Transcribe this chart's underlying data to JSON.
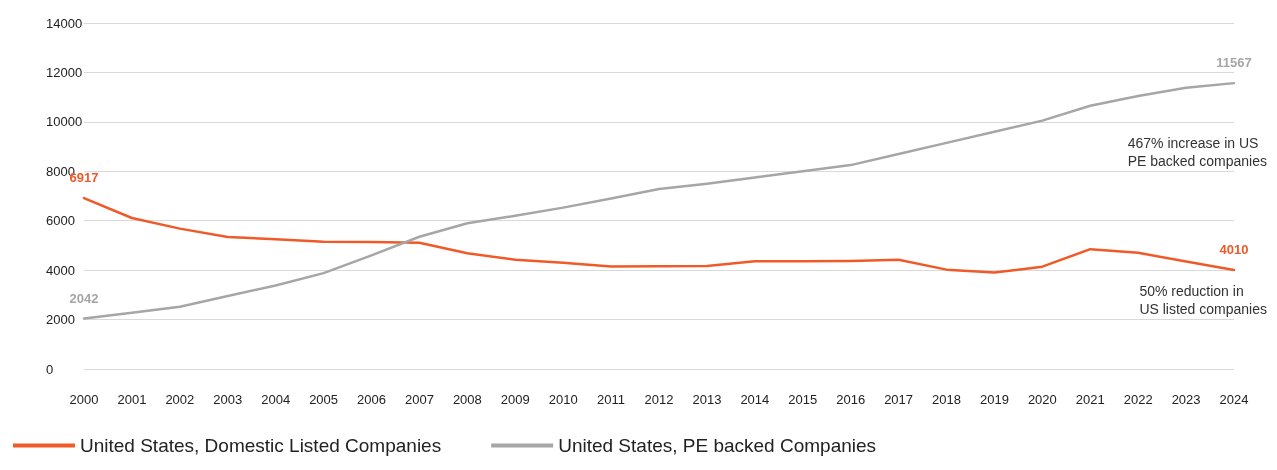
{
  "chart_data": {
    "type": "line",
    "categories": [
      "2000",
      "2001",
      "2002",
      "2003",
      "2004",
      "2005",
      "2006",
      "2007",
      "2008",
      "2009",
      "2010",
      "2011",
      "2012",
      "2013",
      "2014",
      "2015",
      "2016",
      "2017",
      "2018",
      "2019",
      "2020",
      "2021",
      "2022",
      "2023",
      "2024"
    ],
    "series": [
      {
        "name": "United States, Domestic Listed Companies",
        "color": "#f05a28",
        "values": [
          6917,
          6110,
          5680,
          5340,
          5250,
          5150,
          5140,
          5110,
          4680,
          4420,
          4300,
          4150,
          4160,
          4170,
          4360,
          4360,
          4370,
          4420,
          4020,
          3900,
          4140,
          4850,
          4700,
          4350,
          4010
        ],
        "value_labels": [
          "6917",
          null,
          null,
          null,
          null,
          null,
          null,
          null,
          null,
          null,
          null,
          null,
          null,
          null,
          null,
          null,
          null,
          null,
          null,
          null,
          null,
          null,
          null,
          null,
          "4010"
        ]
      },
      {
        "name": "United States, PE backed Companies",
        "color": "#a6a6a6",
        "values": [
          2042,
          2280,
          2520,
          2950,
          3380,
          3880,
          4600,
          5350,
          5900,
          6200,
          6530,
          6900,
          7280,
          7500,
          7750,
          8000,
          8250,
          8700,
          9150,
          9600,
          10050,
          10650,
          11050,
          11380,
          11567
        ],
        "value_labels": [
          "2042",
          null,
          null,
          null,
          null,
          null,
          null,
          null,
          null,
          null,
          null,
          null,
          null,
          null,
          null,
          null,
          null,
          null,
          null,
          null,
          null,
          null,
          null,
          null,
          "11567"
        ]
      }
    ],
    "ylim": [
      0,
      14000
    ],
    "yticks": [
      0,
      2000,
      4000,
      6000,
      8000,
      10000,
      12000,
      14000
    ],
    "grid": "y",
    "legend": "bottom left",
    "marker": "none",
    "line_style": "solid",
    "annotations": [
      "467% increase in US\nPE backed companies",
      "50% reduction in\nUS listed companies"
    ]
  }
}
